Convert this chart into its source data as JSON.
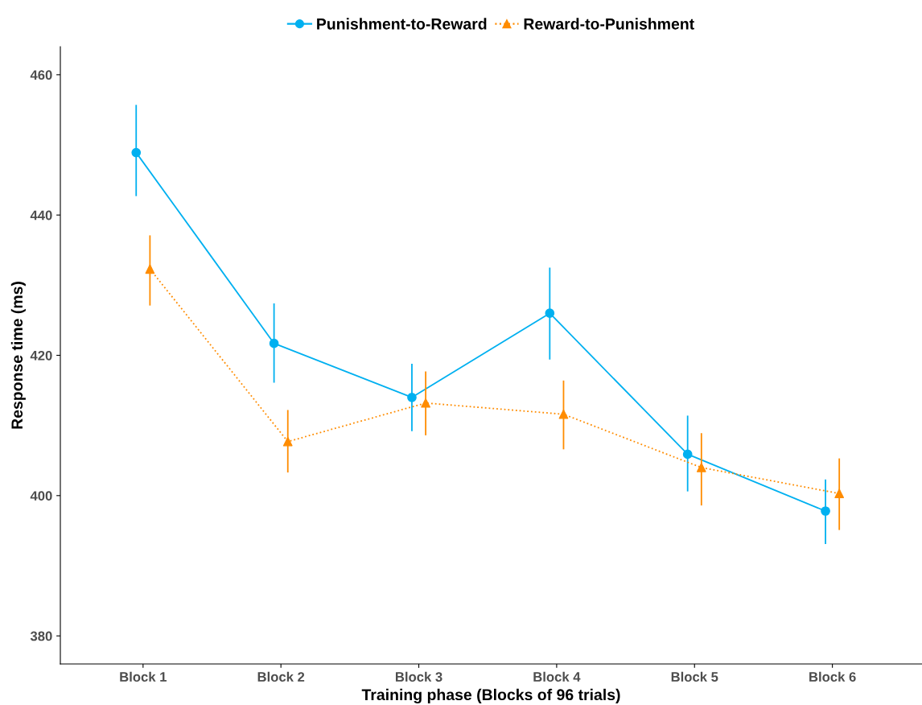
{
  "chart_data": {
    "type": "line",
    "xlabel": "Training phase (Blocks of 96 trials)",
    "ylabel": "Response time (ms)",
    "categories": [
      "Block 1",
      "Block 2",
      "Block 3",
      "Block 4",
      "Block 5",
      "Block 6"
    ],
    "series": [
      {
        "name": "Punishment-to-Reward",
        "color": "#00b0f0",
        "marker": "circle",
        "line_style": "solid",
        "values": [
          448.9,
          421.7,
          414.0,
          426.0,
          405.9,
          397.8
        ],
        "errors": [
          [
            442.8,
            455.6
          ],
          [
            416.2,
            427.3
          ],
          [
            409.3,
            418.7
          ],
          [
            419.5,
            432.4
          ],
          [
            400.7,
            411.3
          ],
          [
            393.2,
            402.2
          ]
        ]
      },
      {
        "name": "Reward-to-Punishment",
        "color": "#ff8c00",
        "marker": "triangle",
        "line_style": "dotted",
        "values": [
          432.3,
          407.7,
          413.2,
          411.6,
          404.0,
          400.3
        ],
        "errors": [
          [
            427.2,
            437.0
          ],
          [
            403.4,
            412.1
          ],
          [
            408.7,
            417.6
          ],
          [
            406.7,
            416.3
          ],
          [
            398.7,
            408.8
          ],
          [
            395.2,
            405.2
          ]
        ]
      }
    ],
    "ylim": [
      376,
      464
    ],
    "yticks": [
      380,
      400,
      420,
      440,
      460
    ],
    "grid": false,
    "legend": "top"
  }
}
